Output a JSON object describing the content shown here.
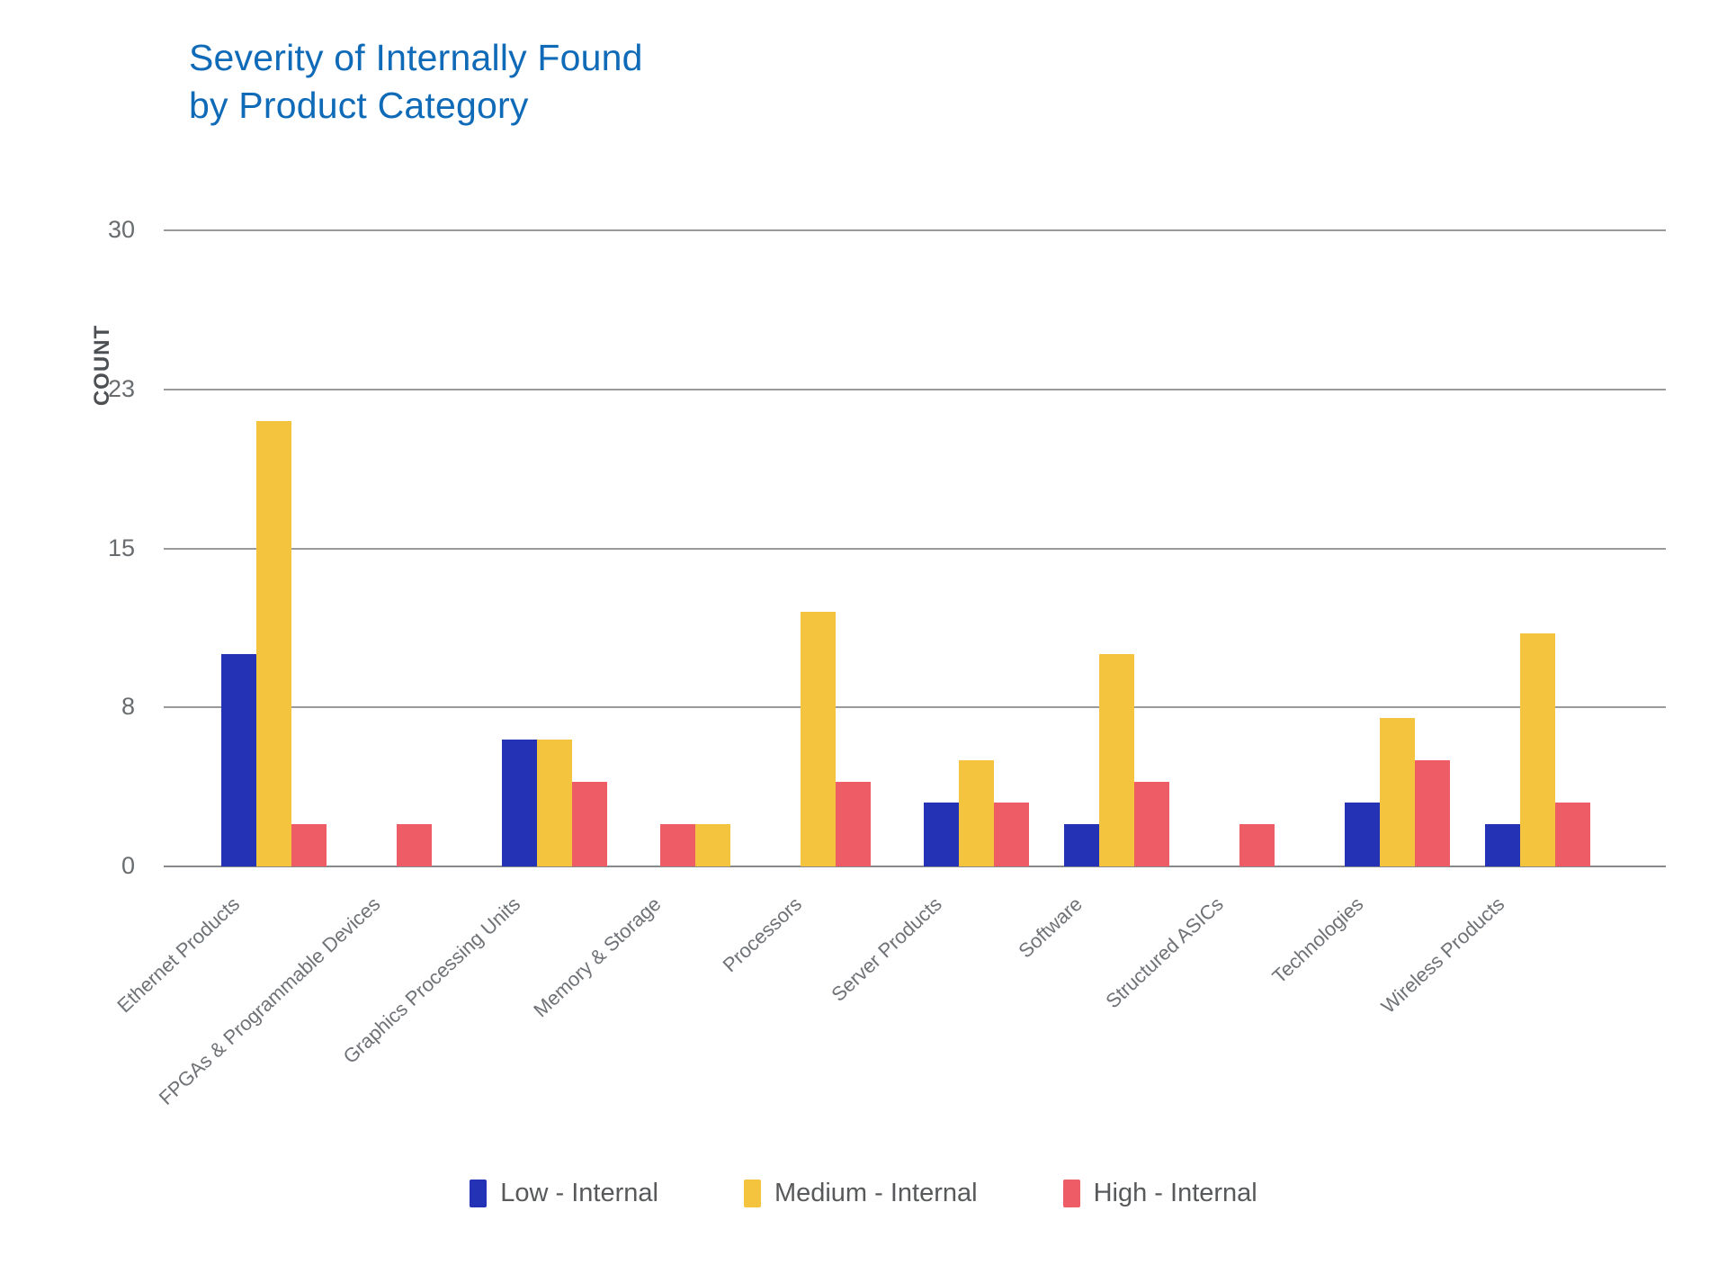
{
  "title": {
    "line1": "Severity of Internally Found",
    "line2": "by Product Category",
    "color": "#0f6ab7"
  },
  "y_axis": {
    "label": "COUNT",
    "label_color": "#4d5053",
    "tick_labels": [
      "0",
      "8",
      "15",
      "23",
      "30"
    ],
    "max": 30
  },
  "legend": {
    "items": [
      {
        "label": "Low - Internal",
        "color": "#2433b5"
      },
      {
        "label": "Medium - Internal",
        "color": "#f4c43f"
      },
      {
        "label": "High - Internal",
        "color": "#ee5c65"
      }
    ]
  },
  "colors": {
    "gridline": "#9a9a9a",
    "baseline": "#87898c",
    "low": "#2433b5",
    "medium": "#f4c43f",
    "high": "#ee5c65"
  },
  "chart_data": {
    "type": "bar",
    "title": "Severity of Internally Found by Product Category",
    "xlabel": "",
    "ylabel": "COUNT",
    "ylim": [
      0,
      30
    ],
    "y_tick_values": [
      0,
      7.5,
      15,
      22.5,
      30
    ],
    "y_tick_labels": [
      0,
      8,
      15,
      23,
      30
    ],
    "grid": true,
    "legend_position": "bottom",
    "categories": [
      "Ethernet Products",
      "FPGAs & Programmable Devices",
      "Graphics Processing Units",
      "Memory & Storage",
      "Processors",
      "Server Products",
      "Software",
      "Structured ASICs",
      "Technologies",
      "Wireless Products"
    ],
    "series": [
      {
        "name": "Low - Internal",
        "color": "#2433b5",
        "values": [
          10,
          null,
          6,
          null,
          null,
          3,
          2,
          null,
          3,
          2
        ]
      },
      {
        "name": "Medium - Internal",
        "color": "#f4c43f",
        "values": [
          21,
          null,
          6,
          2,
          12,
          5,
          10,
          null,
          7,
          11
        ]
      },
      {
        "name": "High - Internal",
        "color": "#ee5c65",
        "values": [
          2,
          2,
          4,
          2,
          4,
          3,
          4,
          2,
          5,
          3
        ]
      }
    ],
    "bars_draw_order_note": "bars listed left-to-right as drawn; s = series index; in Memory & Storage the high bar is drawn left of the medium bar",
    "bars": [
      [
        {
          "s": 0,
          "v": 10
        },
        {
          "s": 1,
          "v": 21
        },
        {
          "s": 2,
          "v": 2
        }
      ],
      [
        {
          "s": 2,
          "v": 2
        }
      ],
      [
        {
          "s": 0,
          "v": 6
        },
        {
          "s": 1,
          "v": 6
        },
        {
          "s": 2,
          "v": 4
        }
      ],
      [
        {
          "s": 2,
          "v": 2
        },
        {
          "s": 1,
          "v": 2
        }
      ],
      [
        {
          "s": 1,
          "v": 12
        },
        {
          "s": 2,
          "v": 4
        }
      ],
      [
        {
          "s": 0,
          "v": 3
        },
        {
          "s": 1,
          "v": 5
        },
        {
          "s": 2,
          "v": 3
        }
      ],
      [
        {
          "s": 0,
          "v": 2
        },
        {
          "s": 1,
          "v": 10
        },
        {
          "s": 2,
          "v": 4
        }
      ],
      [
        {
          "s": 2,
          "v": 2
        }
      ],
      [
        {
          "s": 0,
          "v": 3
        },
        {
          "s": 1,
          "v": 7
        },
        {
          "s": 2,
          "v": 5
        }
      ],
      [
        {
          "s": 0,
          "v": 2
        },
        {
          "s": 1,
          "v": 11
        },
        {
          "s": 2,
          "v": 3
        }
      ]
    ]
  }
}
